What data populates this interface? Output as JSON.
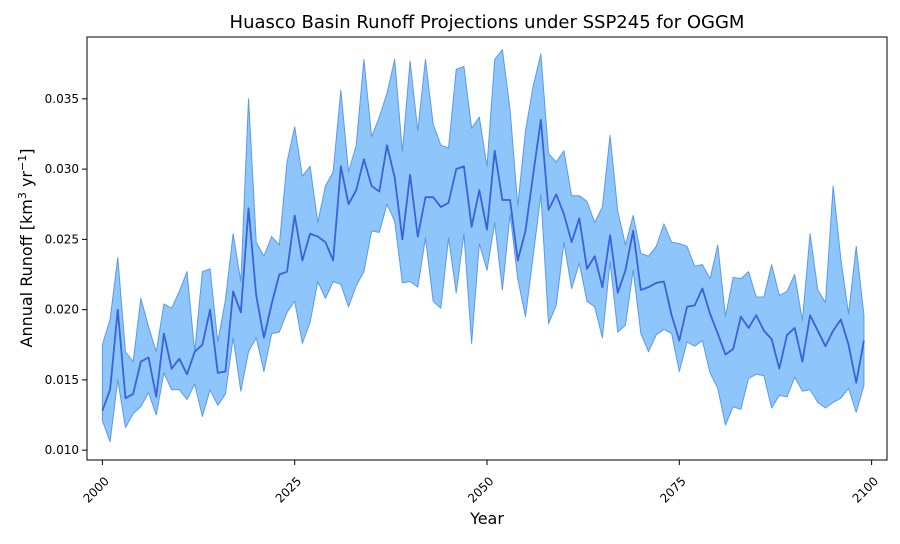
{
  "chart_data": {
    "type": "area",
    "title": "Huasco Basin Runoff Projections under SSP245 for OGGM",
    "xlabel": "Year",
    "ylabel_parts": [
      "Annual Runoff [km",
      "3",
      " yr",
      "−1",
      "]"
    ],
    "xlim": [
      1998,
      2102
    ],
    "ylim": [
      0.0093,
      0.0394
    ],
    "xticks": [
      2000,
      2025,
      2050,
      2075,
      2100
    ],
    "yticks": [
      0.01,
      0.015,
      0.02,
      0.025,
      0.03,
      0.035
    ],
    "ytick_labels": [
      "0.010",
      "0.015",
      "0.020",
      "0.025",
      "0.030",
      "0.035"
    ],
    "grid": false,
    "colors": {
      "line": "#3a62dc",
      "band_fill": "#8ec5fa",
      "band_edge": "#5a9ae8"
    },
    "x_start": 2000,
    "series": [
      {
        "role": "median line",
        "values": [
          0.0128,
          0.0143,
          0.02,
          0.0137,
          0.014,
          0.0163,
          0.0166,
          0.0138,
          0.0183,
          0.0158,
          0.0165,
          0.0154,
          0.017,
          0.0175,
          0.02,
          0.0155,
          0.0156,
          0.0213,
          0.0198,
          0.0272,
          0.021,
          0.018,
          0.0204,
          0.0225,
          0.0227,
          0.0267,
          0.0235,
          0.0254,
          0.0252,
          0.0248,
          0.0235,
          0.0302,
          0.0275,
          0.0285,
          0.0307,
          0.0288,
          0.0284,
          0.0317,
          0.0294,
          0.025,
          0.0296,
          0.0252,
          0.028,
          0.028,
          0.0273,
          0.0276,
          0.03,
          0.0302,
          0.0259,
          0.0285,
          0.0257,
          0.0313,
          0.0278,
          0.0278,
          0.0235,
          0.0256,
          0.0296,
          0.0335,
          0.0271,
          0.0282,
          0.0268,
          0.0248,
          0.0265,
          0.0229,
          0.0238,
          0.0216,
          0.0253,
          0.0212,
          0.0228,
          0.0256,
          0.0214,
          0.0216,
          0.0219,
          0.022,
          0.0196,
          0.0178,
          0.0202,
          0.0203,
          0.0215,
          0.0197,
          0.0183,
          0.0168,
          0.0172,
          0.0195,
          0.0187,
          0.0196,
          0.0185,
          0.0179,
          0.0158,
          0.0182,
          0.0187,
          0.0163,
          0.0196,
          0.0185,
          0.0174,
          0.0185,
          0.0193,
          0.0175,
          0.0148,
          0.0178
        ]
      },
      {
        "role": "band upper",
        "values": [
          0.0175,
          0.0193,
          0.0237,
          0.017,
          0.0163,
          0.0208,
          0.0188,
          0.017,
          0.0204,
          0.0201,
          0.0213,
          0.0227,
          0.017,
          0.0227,
          0.0229,
          0.0177,
          0.0207,
          0.0254,
          0.022,
          0.035,
          0.0248,
          0.0238,
          0.0252,
          0.0246,
          0.0305,
          0.033,
          0.0295,
          0.0302,
          0.0262,
          0.0288,
          0.0298,
          0.0356,
          0.0298,
          0.0317,
          0.0378,
          0.0323,
          0.0337,
          0.0354,
          0.0378,
          0.0312,
          0.0377,
          0.0327,
          0.0378,
          0.0332,
          0.0317,
          0.0315,
          0.0371,
          0.0373,
          0.0329,
          0.0337,
          0.0302,
          0.0378,
          0.0385,
          0.0342,
          0.0274,
          0.0327,
          0.0359,
          0.0382,
          0.0311,
          0.0305,
          0.0313,
          0.0281,
          0.0281,
          0.0277,
          0.0262,
          0.0273,
          0.0324,
          0.027,
          0.0246,
          0.0267,
          0.024,
          0.0238,
          0.0245,
          0.0261,
          0.0248,
          0.0247,
          0.0245,
          0.0231,
          0.0232,
          0.0222,
          0.0246,
          0.0195,
          0.0223,
          0.0222,
          0.0227,
          0.0209,
          0.0209,
          0.0232,
          0.021,
          0.0213,
          0.0225,
          0.0192,
          0.0254,
          0.0214,
          0.0205,
          0.0288,
          0.0236,
          0.0197,
          0.0245,
          0.0196
        ]
      },
      {
        "role": "band lower",
        "values": [
          0.0121,
          0.0106,
          0.015,
          0.0116,
          0.0126,
          0.0131,
          0.0141,
          0.0125,
          0.0155,
          0.0143,
          0.0143,
          0.0136,
          0.0147,
          0.0124,
          0.0143,
          0.0132,
          0.014,
          0.018,
          0.0142,
          0.017,
          0.018,
          0.0156,
          0.0183,
          0.0184,
          0.0198,
          0.0206,
          0.0176,
          0.0191,
          0.022,
          0.0208,
          0.022,
          0.0218,
          0.0202,
          0.0217,
          0.0227,
          0.0256,
          0.0255,
          0.0275,
          0.0263,
          0.0219,
          0.022,
          0.0216,
          0.0251,
          0.0206,
          0.0201,
          0.0251,
          0.0212,
          0.0254,
          0.0176,
          0.0247,
          0.0228,
          0.0262,
          0.0214,
          0.0268,
          0.0222,
          0.0195,
          0.0238,
          0.0282,
          0.019,
          0.0203,
          0.0248,
          0.0215,
          0.0233,
          0.0206,
          0.0202,
          0.018,
          0.0234,
          0.0184,
          0.0189,
          0.0228,
          0.0183,
          0.017,
          0.0182,
          0.0186,
          0.0183,
          0.0156,
          0.0177,
          0.0174,
          0.0178,
          0.0155,
          0.0144,
          0.0118,
          0.0131,
          0.0129,
          0.0151,
          0.0154,
          0.0153,
          0.013,
          0.0139,
          0.0138,
          0.0152,
          0.0142,
          0.0143,
          0.0134,
          0.013,
          0.0134,
          0.0137,
          0.0144,
          0.0127,
          0.0146
        ]
      }
    ]
  }
}
